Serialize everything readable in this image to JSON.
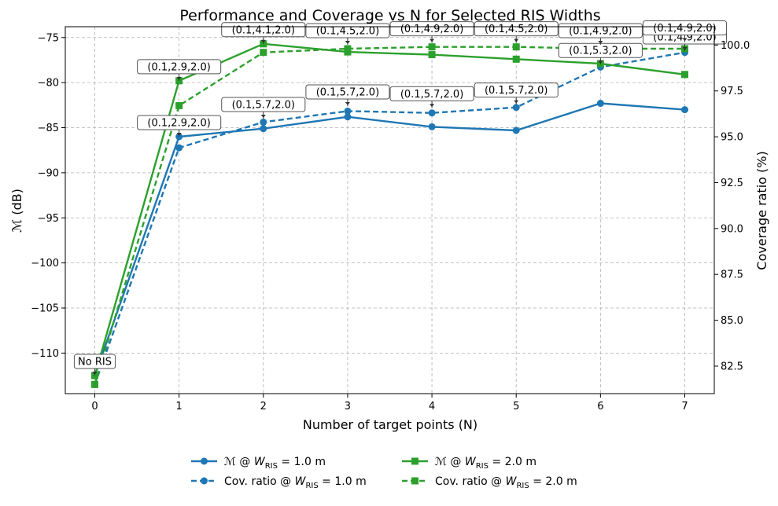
{
  "chart_data": {
    "type": "line",
    "title": "Performance and Coverage vs N for Selected RIS Widths",
    "xlabel": "Number of target points (N)",
    "ylabel_left": "ℳ (dB)",
    "ylabel_right": "Coverage ratio (%)",
    "x": [
      0,
      1,
      2,
      3,
      4,
      5,
      6,
      7
    ],
    "xlim": [
      -0.35,
      7.35
    ],
    "ylim_left": [
      -114.5,
      -73.8
    ],
    "ylim_right": [
      81.0,
      101.0
    ],
    "x_ticks": [
      0,
      1,
      2,
      3,
      4,
      5,
      6,
      7
    ],
    "y_ticks_left": [
      -110,
      -105,
      -100,
      -95,
      -90,
      -85,
      -80,
      -75
    ],
    "y_ticks_right": [
      82.5,
      85.0,
      87.5,
      90.0,
      92.5,
      95.0,
      97.5,
      100.0
    ],
    "grid": true,
    "colors": {
      "blue": "#1f77b4",
      "green": "#2ca02c"
    },
    "series": [
      {
        "legend_label": "ℳ @ W_RIS = 1.0 m",
        "legend_prefix": "ℳ @ ",
        "legend_suffix": " = 1.0 m",
        "axis": "left",
        "color": "#1f77b4",
        "style": "solid",
        "marker": "circle",
        "values": [
          -112.5,
          -86.0,
          -85.1,
          -83.8,
          -84.9,
          -85.3,
          -82.3,
          -83.0
        ]
      },
      {
        "legend_label": "Cov. ratio @ W_RIS = 1.0 m",
        "legend_prefix": "Cov. ratio @ ",
        "legend_suffix": " = 1.0 m",
        "axis": "right",
        "color": "#1f77b4",
        "style": "dashed",
        "marker": "circle",
        "values": [
          81.5,
          94.4,
          95.8,
          96.4,
          96.3,
          96.6,
          98.8,
          99.6
        ]
      },
      {
        "legend_label": "ℳ @ W_RIS = 2.0 m",
        "legend_prefix": "ℳ @ ",
        "legend_suffix": " = 2.0 m",
        "axis": "left",
        "color": "#2ca02c",
        "style": "solid",
        "marker": "square",
        "values": [
          -112.5,
          -79.8,
          -75.7,
          -76.6,
          -76.9,
          -77.4,
          -77.9,
          -79.1
        ]
      },
      {
        "legend_label": "Cov. ratio @ W_RIS = 2.0 m",
        "legend_prefix": "Cov. ratio @ ",
        "legend_suffix": " = 2.0 m",
        "axis": "right",
        "color": "#2ca02c",
        "style": "dashed",
        "marker": "square",
        "values": [
          81.5,
          96.7,
          99.6,
          99.8,
          99.9,
          99.9,
          99.8,
          99.8
        ]
      }
    ],
    "annotations": [
      {
        "text": "No RIS",
        "x": 0,
        "y": -112.5,
        "axis": "left"
      },
      {
        "text": "(0.1,2.9,2.0)",
        "x": 1,
        "y": -86.0,
        "axis": "left"
      },
      {
        "text": "(0.1,5.7,2.0)",
        "x": 2,
        "y": -84.0,
        "axis": "left"
      },
      {
        "text": "(0.1,5.7,2.0)",
        "x": 3,
        "y": -82.6,
        "axis": "left"
      },
      {
        "text": "(0.1,5.7,2.0)",
        "x": 4,
        "y": -82.8,
        "axis": "left"
      },
      {
        "text": "(0.1,5.7,2.0)",
        "x": 5,
        "y": -82.4,
        "axis": "left"
      },
      {
        "text": "(0.1,5.3,2.0)",
        "x": 6,
        "y": -78.0,
        "axis": "left"
      },
      {
        "text": "(0.1,4.9,2.0)",
        "x": 7,
        "y": -76.5,
        "axis": "left"
      },
      {
        "text": "(0.1,2.9,2.0)",
        "x": 1,
        "y": -79.8,
        "axis": "left"
      },
      {
        "text": "(0.1,4.1,2.0)",
        "x": 2,
        "y": -75.7,
        "axis": "left"
      },
      {
        "text": "(0.1,4.5,2.0)",
        "x": 3,
        "y": -75.8,
        "axis": "left"
      },
      {
        "text": "(0.1,4.9,2.0)",
        "x": 4,
        "y": -75.6,
        "axis": "left"
      },
      {
        "text": "(0.1,4.5,2.0)",
        "x": 5,
        "y": -75.6,
        "axis": "left"
      },
      {
        "text": "(0.1,4.9,2.0)",
        "x": 6,
        "y": -75.8,
        "axis": "left"
      },
      {
        "text": "(0.1,4.9,2.0)",
        "x": 7,
        "y": -75.5,
        "axis": "left"
      }
    ],
    "legend_position": "bottom-center"
  }
}
